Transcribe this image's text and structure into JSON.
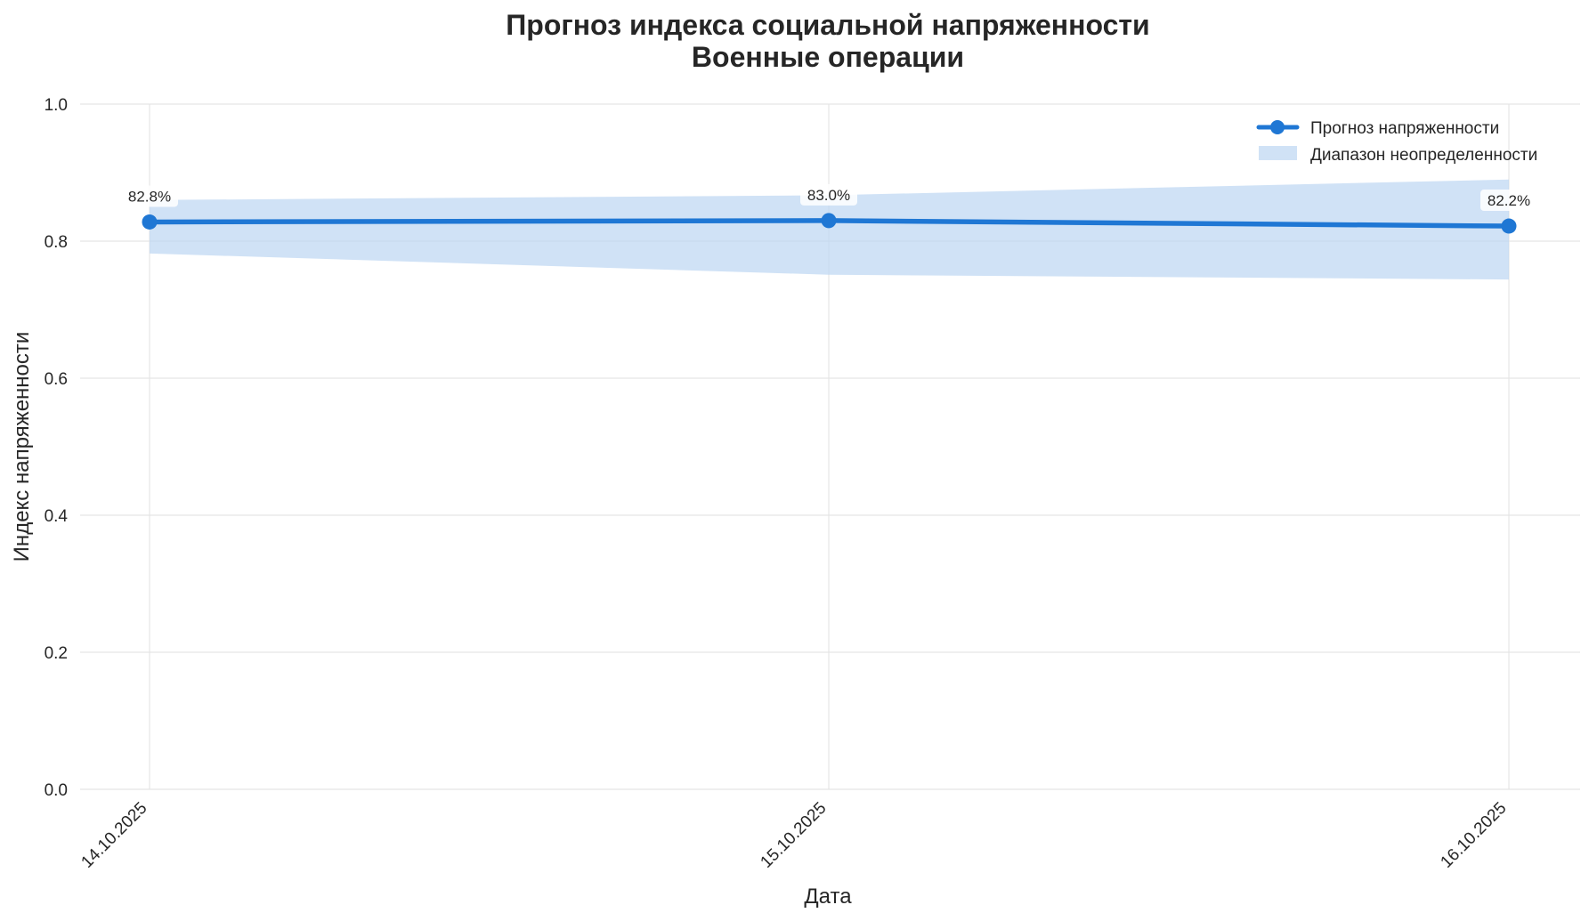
{
  "chart_data": {
    "type": "line",
    "title": "Прогноз индекса социальной напряженности",
    "subtitle": "Военные операции",
    "xlabel": "Дата",
    "ylabel": "Индекс напряженности",
    "categories": [
      "14.10.2025",
      "15.10.2025",
      "16.10.2025"
    ],
    "series": [
      {
        "name": "Прогноз напряженности",
        "values": [
          0.828,
          0.83,
          0.822
        ],
        "data_labels": [
          "82.8%",
          "83.0%",
          "82.2%"
        ],
        "color": "#1f77d4"
      }
    ],
    "uncertainty": {
      "name": "Диапазон неопределенности",
      "lower": [
        0.782,
        0.751,
        0.744
      ],
      "upper": [
        0.86,
        0.867,
        0.89
      ],
      "color": "#bcd6f2"
    },
    "ylim": [
      0.0,
      1.0
    ],
    "yticks": [
      "0.0",
      "0.2",
      "0.4",
      "0.6",
      "0.8",
      "1.0"
    ],
    "ytick_values": [
      0.0,
      0.2,
      0.4,
      0.6,
      0.8,
      1.0
    ],
    "grid": true,
    "legend_position": "top-right"
  }
}
